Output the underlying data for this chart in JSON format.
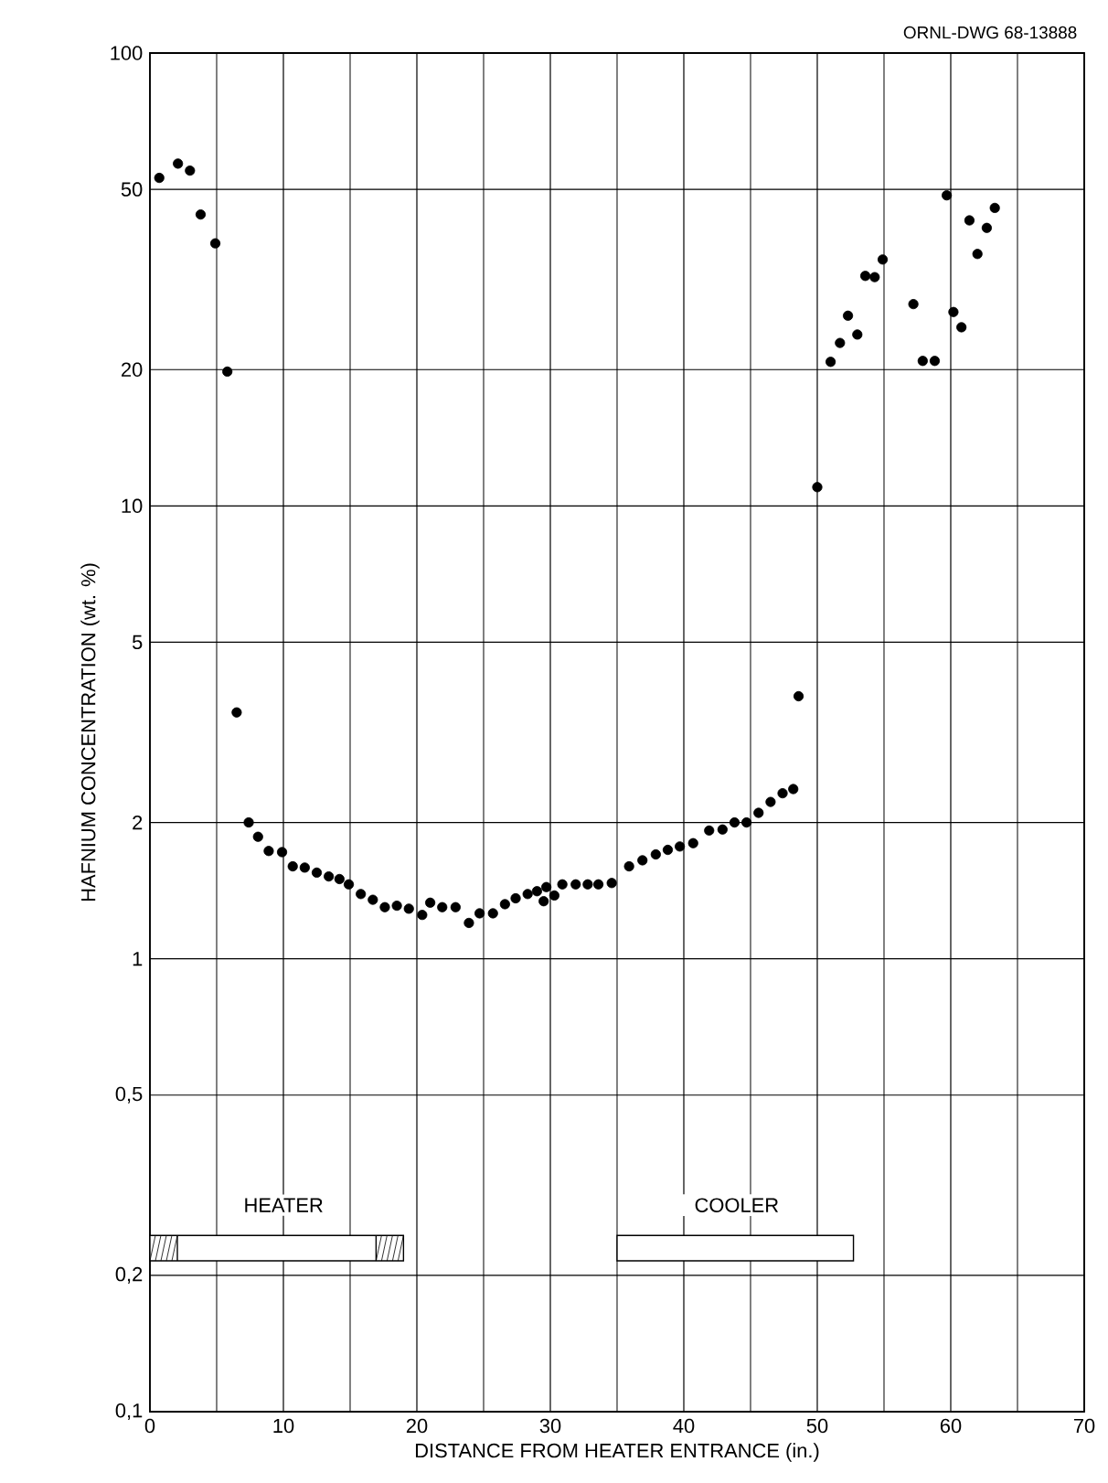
{
  "chart_data": {
    "type": "scatter",
    "xlabel": "DISTANCE FROM HEATER ENTRANCE (in.)",
    "ylabel": "HAFNIUM CONCENTRATION (wt. %)",
    "annotations": [
      "ORNL-DWG 68-13888",
      "HEATER",
      "COOLER"
    ],
    "x": [
      0.7,
      2.1,
      3.0,
      3.8,
      4.9,
      5.8,
      6.5,
      7.4,
      8.1,
      8.9,
      9.9,
      10.7,
      11.6,
      12.5,
      13.4,
      14.2,
      14.9,
      15.8,
      16.7,
      17.6,
      18.5,
      19.4,
      20.4,
      21.0,
      21.9,
      22.9,
      23.9,
      24.7,
      25.7,
      26.6,
      27.4,
      28.3,
      29.0,
      29.7,
      29.5,
      30.3,
      30.9,
      31.9,
      32.8,
      33.6,
      34.6,
      35.9,
      36.9,
      37.9,
      38.8,
      39.7,
      40.7,
      41.9,
      42.9,
      43.8,
      44.7,
      45.6,
      46.5,
      47.4,
      48.2,
      48.6,
      50.0,
      51.0,
      51.7,
      52.3,
      53.0,
      53.6,
      54.3,
      54.9,
      57.2,
      57.9,
      58.8,
      59.7,
      60.2,
      60.8,
      61.4,
      62.0,
      62.7,
      63.3
    ],
    "series": [
      {
        "color": "#000000",
        "values": [
          53,
          57,
          55,
          44,
          38,
          19.8,
          3.5,
          2.0,
          1.86,
          1.73,
          1.72,
          1.6,
          1.59,
          1.55,
          1.52,
          1.5,
          1.46,
          1.39,
          1.35,
          1.3,
          1.31,
          1.29,
          1.25,
          1.33,
          1.3,
          1.3,
          1.2,
          1.26,
          1.26,
          1.32,
          1.36,
          1.39,
          1.41,
          1.44,
          1.34,
          1.38,
          1.46,
          1.46,
          1.46,
          1.46,
          1.47,
          1.6,
          1.65,
          1.7,
          1.74,
          1.77,
          1.8,
          1.92,
          1.93,
          2.0,
          2.0,
          2.1,
          2.22,
          2.32,
          2.37,
          3.8,
          11,
          20.8,
          22.9,
          26.3,
          23.9,
          32.2,
          32.0,
          35.0,
          27.9,
          20.9,
          20.9,
          48.5,
          26.8,
          24.8,
          42.7,
          36.0,
          41.1,
          45.5
        ]
      }
    ],
    "xlim": [
      0,
      70
    ],
    "xticks": [
      0,
      10,
      20,
      30,
      40,
      50,
      60,
      70
    ],
    "ylim": [
      0.1,
      100
    ],
    "yticks": [
      {
        "value": 0.1,
        "label": "0,1"
      },
      {
        "value": 0.2,
        "label": "0,2"
      },
      {
        "value": 0.5,
        "label": "0,5"
      },
      1,
      2,
      5,
      10,
      20,
      50,
      100
    ],
    "log": "y",
    "grid": true,
    "marker": "circle"
  }
}
